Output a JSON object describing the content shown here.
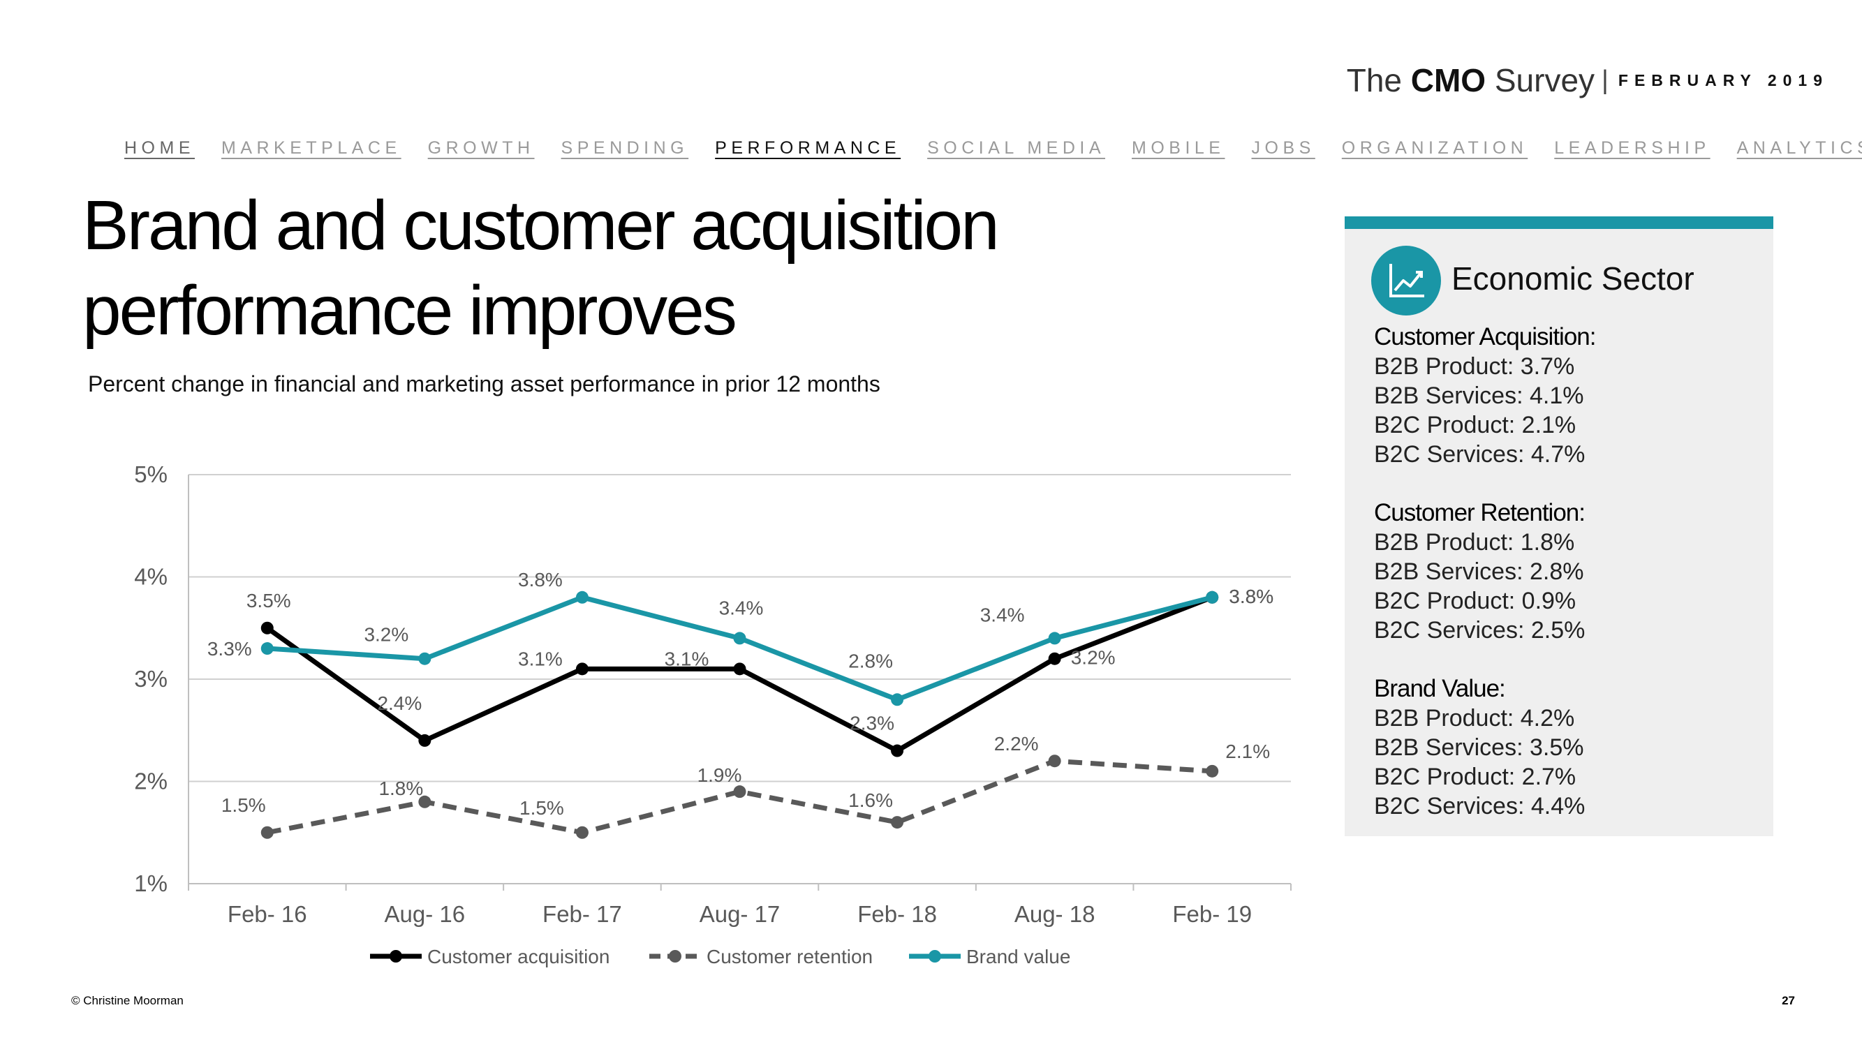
{
  "brand": {
    "the": "The",
    "cmo": "CMO",
    "survey": "Survey",
    "separator": "|",
    "date": "FEBRUARY 2019"
  },
  "nav": [
    "HOME",
    "MARKETPLACE",
    "GROWTH",
    "SPENDING",
    "PERFORMANCE",
    "SOCIAL MEDIA",
    "MOBILE",
    "JOBS",
    "ORGANIZATION",
    "LEADERSHIP",
    "ANALYTICS"
  ],
  "title_line1": "Brand and customer acquisition",
  "title_line2": "performance improves",
  "subtitle": "Percent change in financial and marketing asset performance in prior 12 months",
  "colors": {
    "accent": "#1a96a6",
    "acquisition": "#000000",
    "retention": "#595959",
    "brand": "#1a96a6"
  },
  "chart_data": {
    "type": "line",
    "title": "Percent change in financial and marketing asset performance in prior 12 months",
    "categories": [
      "Feb- 16",
      "Aug- 16",
      "Feb- 17",
      "Aug- 17",
      "Feb- 18",
      "Aug- 18",
      "Feb- 19"
    ],
    "y_ticks": [
      "1%",
      "2%",
      "3%",
      "4%",
      "5%"
    ],
    "ylim": [
      1,
      5
    ],
    "grid": "horizontal",
    "legend_position": "bottom",
    "series": [
      {
        "key": "acquisition",
        "name": "Customer acquisition",
        "style": "solid",
        "color": "#000000",
        "values": [
          3.5,
          2.4,
          3.1,
          3.1,
          2.3,
          3.2,
          3.8
        ],
        "labels": [
          "3.5%",
          "2.4%",
          "3.1%",
          "3.1%",
          "2.3%",
          "3.2%",
          "3.8%"
        ]
      },
      {
        "key": "retention",
        "name": "Customer retention",
        "style": "dashed",
        "color": "#595959",
        "values": [
          1.5,
          1.8,
          1.5,
          1.9,
          1.6,
          2.2,
          2.1
        ],
        "labels": [
          "1.5%",
          "1.8%",
          "1.5%",
          "1.9%",
          "1.6%",
          "2.2%",
          "2.1%"
        ]
      },
      {
        "key": "brand",
        "name": "Brand value",
        "style": "solid",
        "color": "#1a96a6",
        "values": [
          3.3,
          3.2,
          3.8,
          3.4,
          2.8,
          3.4,
          3.8
        ],
        "labels": [
          "3.3%",
          "3.2%",
          "3.8%",
          "3.4%",
          "2.8%",
          "3.4%",
          "3.8%"
        ]
      }
    ]
  },
  "panel": {
    "title": "Economic Sector",
    "icon": "line-chart-icon",
    "sections": [
      {
        "heading": "Customer Acquisition:",
        "lines": [
          "B2B Product: 3.7%",
          "B2B Services: 4.1%",
          "B2C Product: 2.1%",
          "B2C Services: 4.7%"
        ]
      },
      {
        "heading": "Customer Retention:",
        "lines": [
          "B2B Product: 1.8%",
          "B2B Services: 2.8%",
          "B2C Product: 0.9%",
          "B2C Services: 2.5%"
        ]
      },
      {
        "heading": "Brand Value:",
        "lines": [
          "B2B Product: 4.2%",
          "B2B Services: 3.5%",
          "B2C Product: 2.7%",
          "B2C Services: 4.4%"
        ]
      }
    ]
  },
  "footer": {
    "copyright": "© Christine Moorman",
    "page": "27"
  }
}
